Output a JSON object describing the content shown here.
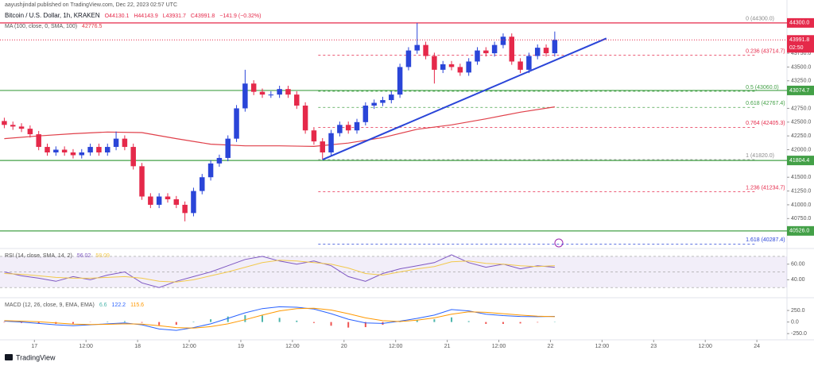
{
  "header": {
    "byline": "aayushjindal published on TradingView.com, Dec 22, 2023 02:57 UTC",
    "symbol": "Bitcoin / U.S. Dollar, 1h, KRAKEN",
    "ohlc": [
      "O44130.1",
      "H44143.9",
      "L43931.7",
      "C43991.8",
      "−141.9 (−0.32%)"
    ]
  },
  "footer": {
    "brand": "TradingView"
  },
  "chart_data": [
    {
      "type": "candlestick",
      "up_color": "#2a45d8",
      "down_color": "#e5294a",
      "xlim": [
        -8,
        175
      ],
      "ylim": [
        40250,
        44500
      ],
      "xticks": [
        {
          "value": 0,
          "label": "17"
        },
        {
          "value": 12,
          "label": "12:00"
        },
        {
          "value": 24,
          "label": "18"
        },
        {
          "value": 36,
          "label": "12:00"
        },
        {
          "value": 48,
          "label": "19"
        },
        {
          "value": 60,
          "label": "12:00"
        },
        {
          "value": 72,
          "label": "20"
        },
        {
          "value": 84,
          "label": "12:00"
        },
        {
          "value": 96,
          "label": "21"
        },
        {
          "value": 108,
          "label": "12:00"
        },
        {
          "value": 120,
          "label": "22"
        },
        {
          "value": 132,
          "label": "12:00"
        },
        {
          "value": 144,
          "label": "23"
        },
        {
          "value": 156,
          "label": "12:00"
        },
        {
          "value": 168,
          "label": "24"
        }
      ],
      "yticks": [
        {
          "value": 40750,
          "label": "40750.0"
        },
        {
          "value": 41000,
          "label": "41000.0"
        },
        {
          "value": 41250,
          "label": "41250.0"
        },
        {
          "value": 41500,
          "label": "41500.0"
        },
        {
          "value": 42000,
          "label": "42000.0"
        },
        {
          "value": 42250,
          "label": "42250.0"
        },
        {
          "value": 42500,
          "label": "42500.0"
        },
        {
          "value": 42750,
          "label": "42750.0"
        },
        {
          "value": 43250,
          "label": "43250.0"
        },
        {
          "value": 43500,
          "label": "43500.0"
        },
        {
          "value": 43750,
          "label": "43750.0"
        }
      ],
      "x": [
        -7,
        -5,
        -3,
        -1,
        1,
        3,
        5,
        7,
        9,
        11,
        13,
        15,
        17,
        19,
        21,
        23,
        25,
        27,
        29,
        31,
        33,
        35,
        37,
        39,
        41,
        43,
        45,
        47,
        49,
        51,
        53,
        55,
        57,
        59,
        61,
        63,
        65,
        67,
        69,
        71,
        73,
        75,
        77,
        79,
        81,
        83,
        85,
        87,
        89,
        91,
        93,
        95,
        97,
        99,
        101,
        103,
        105,
        107,
        109,
        111,
        113,
        115,
        117,
        119,
        121
      ],
      "open": [
        42520,
        42450,
        42420,
        42380,
        42280,
        42050,
        41950,
        42000,
        41950,
        41900,
        41950,
        42050,
        41950,
        42050,
        42200,
        42050,
        41700,
        41150,
        41000,
        41150,
        41100,
        41000,
        40850,
        41250,
        41500,
        41750,
        41850,
        42200,
        42750,
        43200,
        43050,
        43000,
        43000,
        43100,
        43000,
        42800,
        42350,
        42150,
        41950,
        42300,
        42450,
        42350,
        42500,
        42800,
        42850,
        42900,
        43000,
        43500,
        43800,
        43900,
        43700,
        43450,
        43550,
        43500,
        43400,
        43600,
        43800,
        43750,
        43900,
        44050,
        43600,
        43450,
        43700,
        43850,
        43750
      ],
      "high": [
        42580,
        42510,
        42480,
        42440,
        42340,
        42110,
        42060,
        42060,
        42010,
        42010,
        42110,
        42110,
        42110,
        42330,
        42260,
        42110,
        41760,
        41210,
        41210,
        41210,
        41160,
        41060,
        41310,
        41560,
        41810,
        41910,
        42260,
        42810,
        43450,
        43260,
        43110,
        43060,
        43160,
        43160,
        43060,
        42860,
        42410,
        42210,
        42360,
        42510,
        42510,
        42560,
        42860,
        42910,
        42960,
        43060,
        43560,
        43860,
        44300,
        43960,
        43760,
        43610,
        43610,
        43560,
        43660,
        43860,
        43860,
        43960,
        44110,
        44110,
        43660,
        43760,
        43910,
        43910,
        44143.9
      ],
      "low": [
        42390,
        42360,
        42320,
        42220,
        41990,
        41890,
        41890,
        41890,
        41840,
        41840,
        41890,
        41890,
        41890,
        41990,
        41990,
        41640,
        41090,
        40940,
        40940,
        41040,
        40940,
        40700,
        40790,
        41190,
        41440,
        41690,
        41790,
        42140,
        42690,
        42990,
        42940,
        42940,
        42940,
        42940,
        42740,
        42290,
        42090,
        41820,
        41890,
        42240,
        42290,
        42290,
        42440,
        42740,
        42790,
        42840,
        42940,
        43440,
        43740,
        43640,
        43200,
        43390,
        43440,
        43340,
        43340,
        43540,
        43690,
        43690,
        43840,
        43540,
        43390,
        43390,
        43640,
        43690,
        43690
      ],
      "close": [
        42450,
        42420,
        42380,
        42280,
        42050,
        41950,
        42000,
        41950,
        41900,
        41950,
        42050,
        41950,
        42050,
        42200,
        42050,
        41700,
        41150,
        41000,
        41150,
        41100,
        41000,
        40850,
        41250,
        41500,
        41750,
        41850,
        42200,
        42750,
        43200,
        43050,
        43000,
        43000,
        43100,
        43000,
        42800,
        42350,
        42150,
        41950,
        42300,
        42450,
        42350,
        42500,
        42800,
        42850,
        42900,
        43000,
        43500,
        43800,
        43900,
        43700,
        43450,
        43550,
        43500,
        43400,
        43600,
        43800,
        43750,
        43900,
        44050,
        43600,
        43450,
        43700,
        43850,
        43750,
        43991.8
      ],
      "ma": {
        "name": "MA (100, close, 0, SMA, 100)",
        "value_label": "42776.5",
        "color": "#e0404a",
        "x": [
          -7,
          1,
          9,
          17,
          25,
          33,
          41,
          49,
          57,
          65,
          73,
          81,
          89,
          97,
          105,
          113,
          121
        ],
        "values": [
          42200,
          42250,
          42290,
          42320,
          42310,
          42200,
          42100,
          42070,
          42070,
          42060,
          42120,
          42220,
          42370,
          42450,
          42560,
          42680,
          42776.5
        ]
      },
      "levels": [
        {
          "value": 44300,
          "label": "44300.0",
          "color": "#e5294a"
        },
        {
          "value": 43074.7,
          "label": "43074.7",
          "color": "#43a047"
        },
        {
          "value": 41804.4,
          "label": "41804.4",
          "color": "#43a047"
        },
        {
          "value": 40526.0,
          "label": "40526.0",
          "color": "#43a047"
        }
      ],
      "last_price": {
        "value": 43991.8,
        "label": "43991.8",
        "countdown": "02:50",
        "color": "#e5294a"
      },
      "fib_x": [
        66,
        168
      ],
      "fib": [
        {
          "value": 44300,
          "label": "0 (44300.0)",
          "color": "#8a8a8a"
        },
        {
          "value": 43714.7,
          "label": "0.236 (43714.7)",
          "color": "#e5294a"
        },
        {
          "value": 43060.0,
          "label": "0.5 (43060.0)",
          "color": "#43a047"
        },
        {
          "value": 42767.4,
          "label": "0.618 (42767.4)",
          "color": "#43a047"
        },
        {
          "value": 42405.3,
          "label": "0.764 (42405.3)",
          "color": "#e5294a"
        },
        {
          "value": 41820.0,
          "label": "1 (41820.0)",
          "color": "#8a8a8a"
        },
        {
          "value": 41234.7,
          "label": "1.236 (41234.7)",
          "color": "#e5294a"
        },
        {
          "value": 40287.4,
          "label": "1.618 (40287.4)",
          "color": "#2a45d8"
        }
      ],
      "trendline": {
        "x": [
          67,
          133
        ],
        "values": [
          41820,
          44020
        ],
        "color": "#2a45d8"
      }
    },
    {
      "type": "line",
      "name": "RSI (14, close, SMA, 14, 2)",
      "ylim": [
        20,
        76
      ],
      "yticks": [
        {
          "value": 60,
          "label": "60.00"
        },
        {
          "value": 40,
          "label": "40.00"
        }
      ],
      "bands": [
        70,
        50,
        30
      ],
      "band_color": "#7e57c2",
      "x": [
        -7,
        -3,
        1,
        5,
        9,
        13,
        17,
        21,
        25,
        29,
        33,
        37,
        41,
        45,
        49,
        53,
        57,
        61,
        65,
        69,
        73,
        77,
        81,
        85,
        89,
        93,
        97,
        101,
        105,
        109,
        113,
        117,
        121
      ],
      "series": [
        {
          "color": "#7e57c2",
          "value_label": "56.02",
          "values": [
            50,
            45,
            42,
            38,
            44,
            40,
            46,
            50,
            36,
            30,
            38,
            44,
            50,
            58,
            66,
            70,
            64,
            60,
            64,
            58,
            44,
            38,
            48,
            54,
            58,
            62,
            72,
            62,
            56,
            60,
            54,
            58,
            56.02
          ]
        },
        {
          "color": "#f2c94c",
          "value_label": "58.09",
          "values": [
            48,
            47,
            45,
            43,
            42,
            42,
            43,
            44,
            42,
            38,
            37,
            40,
            45,
            50,
            56,
            62,
            65,
            64,
            62,
            60,
            55,
            48,
            46,
            50,
            54,
            57,
            63,
            64,
            61,
            60,
            58,
            57,
            58.09
          ]
        }
      ]
    },
    {
      "type": "macd",
      "name": "MACD (12, 26, close, 9, EMA, EMA)",
      "ylim": [
        -350,
        440
      ],
      "yticks": [
        {
          "value": 250,
          "label": "250.0"
        },
        {
          "value": 0,
          "label": "0.0"
        },
        {
          "value": -250,
          "label": "-250.0"
        }
      ],
      "x": [
        -7,
        -3,
        1,
        5,
        9,
        13,
        17,
        21,
        25,
        29,
        33,
        37,
        41,
        45,
        49,
        53,
        57,
        61,
        65,
        69,
        73,
        77,
        81,
        85,
        89,
        93,
        97,
        101,
        105,
        109,
        113,
        117,
        121
      ],
      "histogram": {
        "up_color": "#4db6ac",
        "down_color": "#ef5350",
        "value_label": "6.6",
        "values": [
          -10,
          -20,
          -35,
          -40,
          -35,
          -5,
          10,
          20,
          -15,
          -70,
          -60,
          10,
          60,
          120,
          150,
          140,
          90,
          30,
          -20,
          -80,
          -120,
          -110,
          -60,
          10,
          40,
          60,
          100,
          20,
          -40,
          -40,
          -30,
          -10,
          6.6
        ]
      },
      "series": [
        {
          "color": "#2962ff",
          "value_label": "122.2",
          "values": [
            20,
            0,
            -30,
            -60,
            -80,
            -60,
            -40,
            -20,
            -60,
            -150,
            -180,
            -120,
            -40,
            80,
            200,
            290,
            330,
            320,
            280,
            180,
            60,
            -20,
            -30,
            20,
            80,
            150,
            270,
            240,
            170,
            140,
            120,
            115,
            122.2
          ]
        },
        {
          "color": "#ff9800",
          "value_label": "115.6",
          "values": [
            30,
            20,
            5,
            -20,
            -45,
            -55,
            -50,
            -40,
            -45,
            -80,
            -120,
            -130,
            -100,
            -40,
            50,
            150,
            240,
            290,
            300,
            260,
            180,
            90,
            30,
            10,
            40,
            90,
            170,
            220,
            210,
            180,
            150,
            125,
            115.6
          ]
        }
      ]
    }
  ]
}
